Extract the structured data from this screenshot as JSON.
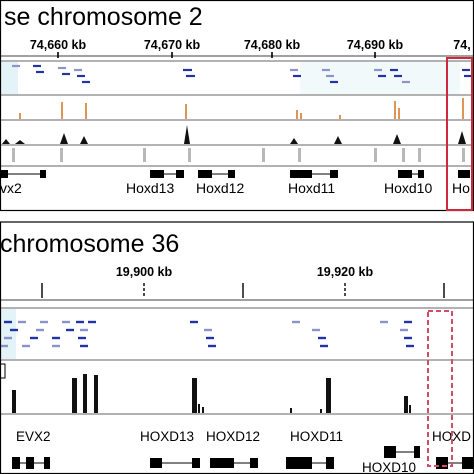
{
  "top_panel": {
    "title": "se chromosome 2",
    "coords": [
      "74,660 kb",
      "74,670 kb",
      "74,680 kb",
      "74,690 kb",
      "74,"
    ],
    "genes": [
      "vx2",
      "Hoxd13",
      "Hoxd12",
      "Hoxd11",
      "Hoxd10",
      "Ho"
    ],
    "highlight_color": "#d0283a"
  },
  "bottom_panel": {
    "title": "chromosome 36",
    "coords": [
      "19,900 kb",
      "19,920 kb"
    ],
    "genes": [
      "EVX2",
      "HOXD13",
      "HOXD12",
      "HOXD11",
      "HOXD10",
      "HOXD"
    ],
    "highlight_color": "#d64a6a"
  },
  "colors": {
    "feature_dark": "#2233aa",
    "feature_light": "#8c93cc",
    "signal_orange": "#d87a2a",
    "signal_black": "#111111",
    "conserved_gray": "#b8b8b8",
    "accessible_tint": "#e4f3f7"
  }
}
